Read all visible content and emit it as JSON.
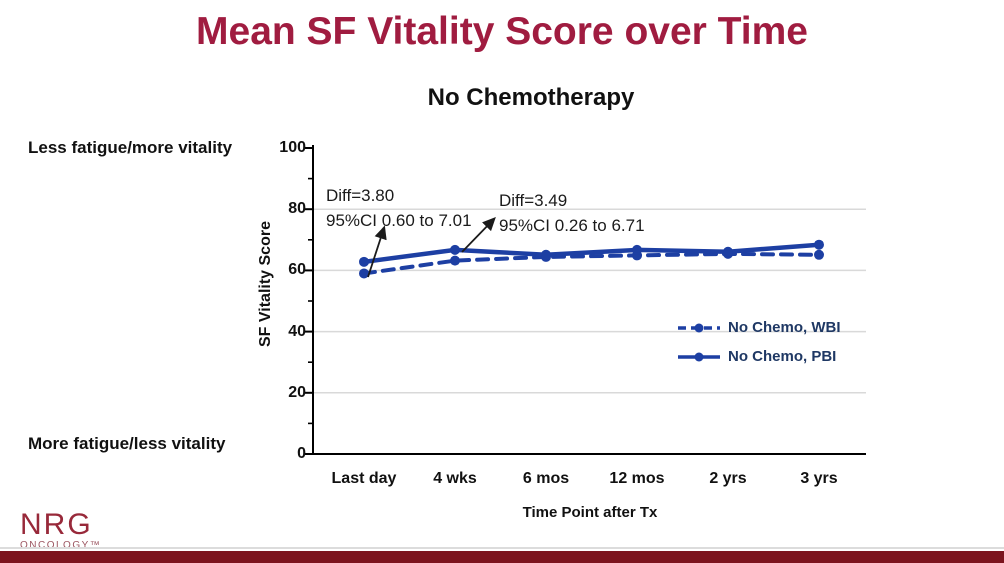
{
  "slide": {
    "title": "Mean SF Vitality Score over Time",
    "title_color": "#a01c40",
    "footer_bar_color": "#7c141e",
    "logo": {
      "name": "NRG",
      "sub": "ONCOLOGY™"
    }
  },
  "side_labels": {
    "top": "Less fatigue/more vitality",
    "bottom": "More fatigue/less vitality"
  },
  "chart_data": {
    "type": "line",
    "title": "No Chemotherapy",
    "xlabel": "Time Point after Tx",
    "ylabel": "SF Vitality Score",
    "categories": [
      "Last day",
      "4 wks",
      "6 mos",
      "12 mos",
      "2 yrs",
      "3 yrs"
    ],
    "yticks": [
      0,
      20,
      40,
      60,
      80,
      100
    ],
    "ylim": [
      0,
      100
    ],
    "grid": "horizontal major gridlines, light gray",
    "legend_position": "inside right, stacked",
    "line_color": "#1d3fa3",
    "series": [
      {
        "name": "No Chemo, WBI",
        "style": "dashed",
        "color": "#1d3fa3",
        "values": [
          59.0,
          63.2,
          64.4,
          64.9,
          65.4,
          65.1
        ]
      },
      {
        "name": "No Chemo, PBI",
        "style": "solid",
        "color": "#1d3fa3",
        "values": [
          62.8,
          66.7,
          65.1,
          66.7,
          66.1,
          68.4
        ]
      }
    ],
    "annotations": [
      {
        "line1": "Diff=3.80",
        "line2": "95%CI 0.60 to 7.01"
      },
      {
        "line1": "Diff=3.49",
        "line2": "95%CI 0.26 to 6.71"
      }
    ]
  }
}
